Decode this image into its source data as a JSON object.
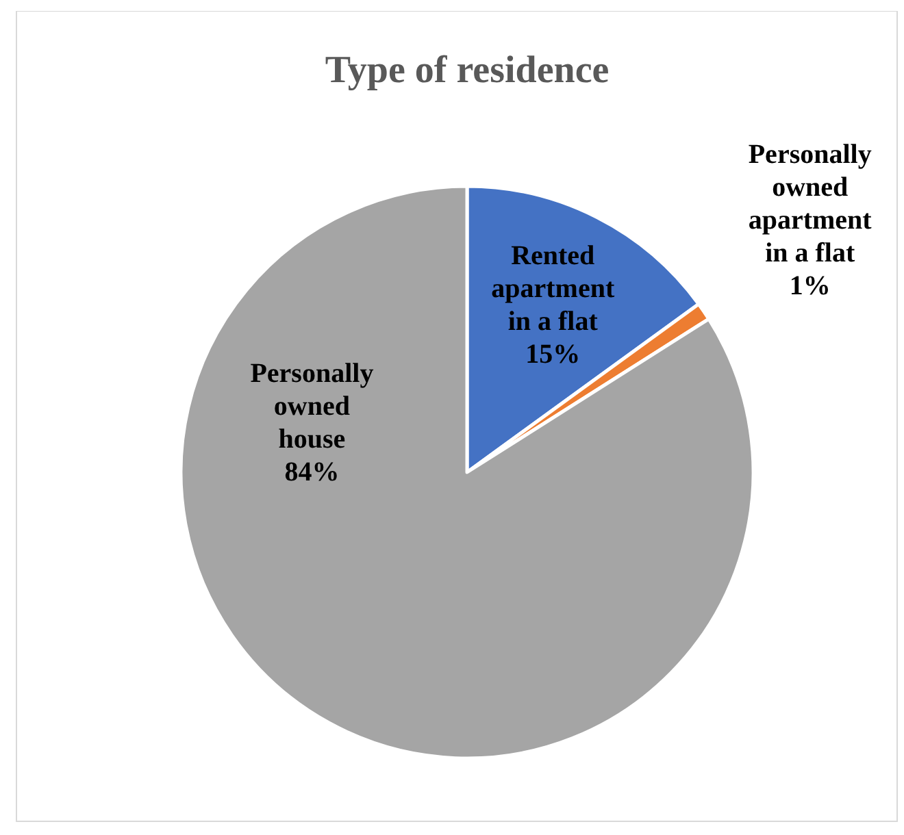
{
  "chart_data": {
    "type": "pie",
    "title": "Type of residence",
    "categories": [
      "Rented apartment in a flat",
      "Personally owned apartment in a flat",
      "Personally owned house"
    ],
    "values": [
      15,
      1,
      84
    ],
    "colors": [
      "#4472c4",
      "#ed7d31",
      "#a5a5a5"
    ],
    "value_labels": [
      "15%",
      "1%",
      "84%"
    ]
  }
}
